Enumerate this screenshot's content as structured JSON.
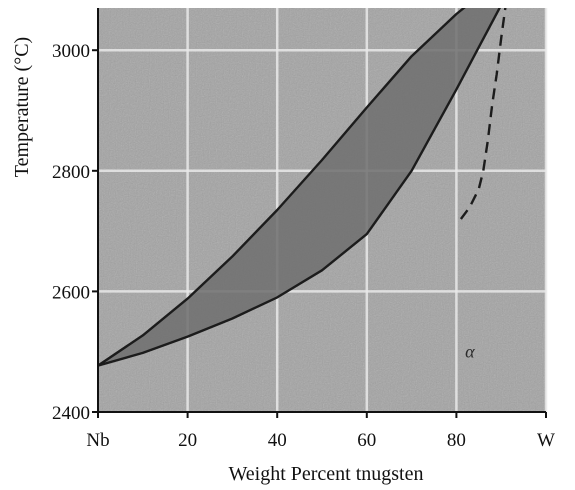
{
  "chart_data": {
    "type": "line",
    "title": "",
    "xlabel": "Weight Percent tnugsten",
    "ylabel": "Temperature (°C)",
    "xlim": [
      0,
      100
    ],
    "ylim": [
      2400,
      3070
    ],
    "x_ticks": [
      0,
      20,
      40,
      60,
      80,
      100
    ],
    "x_tick_labels": [
      "Nb",
      "20",
      "40",
      "60",
      "80",
      "W"
    ],
    "y_ticks": [
      2400,
      2600,
      2800,
      3000
    ],
    "y_tick_labels": [
      "2400",
      "2600",
      "2800",
      "3000"
    ],
    "grid": true,
    "colors": {
      "background": "#a3a3a3",
      "two_phase_region": "#6e6e6e",
      "grid": "#e9e9e9",
      "curves": "#1c1c1c"
    },
    "series": [
      {
        "style": "solid",
        "x": [
          0,
          10,
          20,
          30,
          40,
          50,
          60,
          70,
          80,
          85,
          90
        ],
        "y": [
          2477,
          2527,
          2588,
          2658,
          2735,
          2818,
          2905,
          2990,
          3060,
          3090,
          3110
        ]
      },
      {
        "style": "solid",
        "x": [
          0,
          10,
          20,
          30,
          40,
          50,
          60,
          70,
          80,
          85,
          90
        ],
        "y": [
          2477,
          2498,
          2525,
          2555,
          2590,
          2635,
          2695,
          2800,
          2935,
          3005,
          3075
        ]
      },
      {
        "style": "dashed",
        "x": [
          81,
          83,
          85,
          86,
          87,
          88,
          89,
          90,
          91
        ],
        "y": [
          2720,
          2740,
          2770,
          2800,
          2850,
          2910,
          2960,
          3020,
          3075
        ]
      }
    ],
    "annotations": [
      {
        "text": "α",
        "x": 83,
        "y": 2490
      }
    ]
  }
}
